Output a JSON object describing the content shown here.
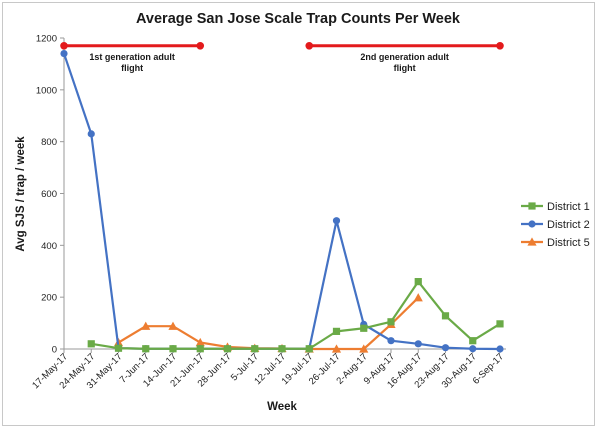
{
  "chart_data": {
    "type": "line",
    "title": "Average San Jose Scale Trap Counts Per Week",
    "xlabel": "Week",
    "ylabel": "Avg SJS / trap / week",
    "ylim": [
      0,
      1200
    ],
    "yticks": [
      0,
      200,
      400,
      600,
      800,
      1000,
      1200
    ],
    "grid": false,
    "legend_position": "right",
    "categories": [
      "17-May-17",
      "24-May-17",
      "31-May-17",
      "7-Jun-17",
      "14-Jun-17",
      "21-Jun-17",
      "28-Jun-17",
      "5-Jul-17",
      "12-Jul-17",
      "19-Jul-17",
      "26-Jul-17",
      "2-Aug-17",
      "9-Aug-17",
      "16-Aug-17",
      "23-Aug-17",
      "30-Aug-17",
      "6-Sep-17"
    ],
    "series": [
      {
        "name": "District 1",
        "color": "#6aaa47",
        "marker": "square",
        "values": [
          null,
          20,
          3,
          1,
          1,
          1,
          1,
          1,
          1,
          1,
          68,
          80,
          105,
          260,
          128,
          32,
          97
        ]
      },
      {
        "name": "District 2",
        "color": "#4472c4",
        "marker": "circle",
        "values": [
          1140,
          830,
          3,
          1,
          1,
          1,
          1,
          1,
          1,
          1,
          495,
          95,
          32,
          20,
          5,
          1,
          0
        ]
      },
      {
        "name": "District 5",
        "color": "#ed7d31",
        "marker": "triangle",
        "values": [
          null,
          null,
          25,
          88,
          88,
          25,
          8,
          3,
          2,
          0,
          0,
          0,
          95,
          198,
          null,
          null,
          null
        ]
      }
    ],
    "annotations": [
      {
        "label": "1st generation adult flight",
        "lines": [
          "1st generation adult",
          "flight"
        ],
        "from": "17-May-17",
        "to": "21-Jun-17",
        "y": 1170,
        "color": "#e31a1c"
      },
      {
        "label": "2nd generation adult flight",
        "lines": [
          "2nd generation adult",
          "flight"
        ],
        "from": "19-Jul-17",
        "to": "6-Sep-17",
        "y": 1170,
        "color": "#e31a1c"
      }
    ]
  }
}
